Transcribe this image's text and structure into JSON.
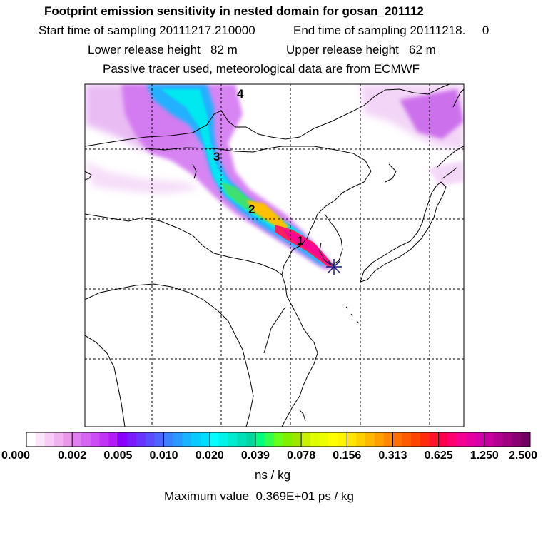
{
  "header": {
    "title": "Footprint emission sensitivity in nested domain for gosan_201112",
    "start_time": "Start time of sampling 20111217.210000",
    "end_time": "End time of sampling 20111218.     0",
    "lower_height": "Lower release height   82 m",
    "upper_height": "Upper release height   62 m",
    "tracer_info": "Passive tracer used, meteorological data are from ECMWF"
  },
  "map": {
    "trajectory_labels": [
      "4",
      "3",
      "2",
      "1"
    ],
    "receptor_marker": "asterisk-marker"
  },
  "colorbar": {
    "tick_labels": [
      "0.000",
      "0.002",
      "0.005",
      "0.010",
      "0.020",
      "0.039",
      "0.078",
      "0.156",
      "0.313",
      "0.625",
      "1.250",
      "2.500"
    ],
    "colors": [
      [
        "#ffffff",
        "#fbe6fb",
        "#f7ccf7",
        "#f0b3f0",
        "#ea99ea"
      ],
      [
        "#e080f0",
        "#d666f2",
        "#cc4df4",
        "#c033f5",
        "#b31af7"
      ],
      [
        "#8a00ff",
        "#7a1aff",
        "#6a33ff",
        "#5a4dff",
        "#4a66ff"
      ],
      [
        "#3a80ff",
        "#2a99ff",
        "#1ab3ff",
        "#0acbff",
        "#00dcff"
      ],
      [
        "#00ffff",
        "#00f5e8",
        "#00ebd0",
        "#00e0b8",
        "#00d6a0"
      ],
      [
        "#00ff80",
        "#33ff4d",
        "#66ff1a",
        "#80f000",
        "#a0e600"
      ],
      [
        "#c8f000",
        "#dfff00",
        "#f0ff00",
        "#ffff00",
        "#fff500"
      ],
      [
        "#ffe600",
        "#ffd000",
        "#ffb800",
        "#ffa000",
        "#ff8800"
      ],
      [
        "#ff7000",
        "#ff5a00",
        "#ff4400",
        "#ff2a10",
        "#ff1428"
      ],
      [
        "#ff0050",
        "#ff0070",
        "#f50090",
        "#e600a0",
        "#d600a8"
      ],
      [
        "#c8009e",
        "#b40090",
        "#a00080",
        "#8a0070",
        "#700060"
      ]
    ],
    "units": "ns / kg",
    "max_value": "Maximum value  0.369E+01 ps / kg"
  }
}
